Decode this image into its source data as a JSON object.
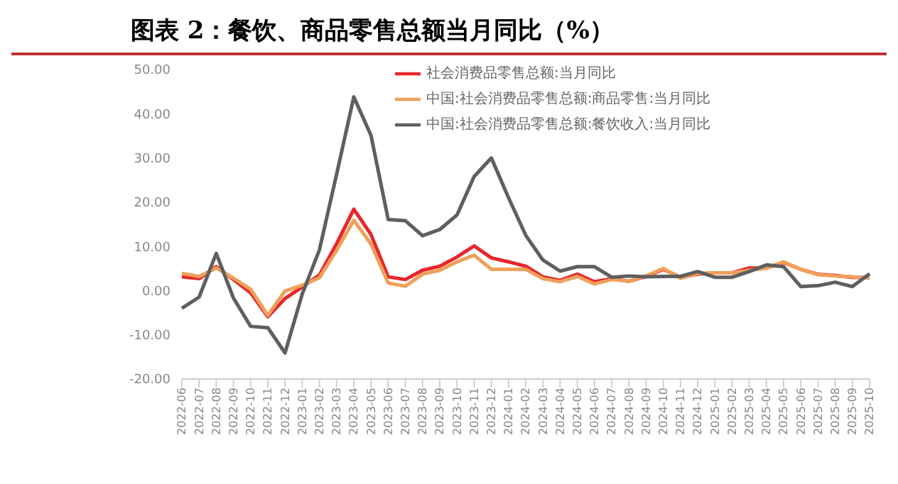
{
  "chart_data": {
    "type": "line",
    "title": "图表 2：餐饮、商品零售总额当月同比（%）",
    "categories": [
      "2022-06",
      "2022-07",
      "2022-08",
      "2022-09",
      "2022-10",
      "2022-11",
      "2022-12",
      "2023-01",
      "2023-02",
      "2023-03",
      "2023-04",
      "2023-05",
      "2023-06",
      "2023-07",
      "2023-08",
      "2023-09",
      "2023-10",
      "2023-11",
      "2023-12",
      "2024-01",
      "2024-02",
      "2024-03",
      "2024-04",
      "2024-05",
      "2024-06",
      "2024-07",
      "2024-08",
      "2024-09",
      "2024-10",
      "2024-11",
      "2024-12",
      "2025-01",
      "2025-02",
      "2025-03",
      "2025-04",
      "2025-05",
      "2025-06",
      "2025-07",
      "2025-08",
      "2025-09",
      "2025-10"
    ],
    "series": [
      {
        "name": "社会消费品零售总额:当月同比",
        "color": "#e8262a",
        "values": [
          3.1,
          2.7,
          5.4,
          2.5,
          -0.5,
          -5.9,
          -1.8,
          0.8,
          3.5,
          10.6,
          18.4,
          12.7,
          3.1,
          2.5,
          4.6,
          5.5,
          7.6,
          10.1,
          7.4,
          6.5,
          5.5,
          3.1,
          2.3,
          3.7,
          2.0,
          2.7,
          2.1,
          3.2,
          4.8,
          3.0,
          3.7,
          4.0,
          4.0,
          5.1,
          5.1,
          6.4,
          4.8,
          3.7,
          3.4,
          3.0,
          2.9
        ]
      },
      {
        "name": "中国:社会消费品零售总额:商品零售:当月同比",
        "color": "#f0a05a",
        "values": [
          3.9,
          3.2,
          5.1,
          2.8,
          0.3,
          -5.6,
          -0.1,
          1.2,
          2.9,
          9.1,
          15.9,
          10.5,
          1.7,
          1.0,
          3.7,
          4.6,
          6.5,
          8.0,
          4.8,
          4.8,
          4.8,
          2.7,
          2.0,
          3.2,
          1.5,
          2.5,
          2.1,
          3.3,
          5.0,
          2.8,
          3.9,
          4.0,
          4.0,
          4.6,
          5.1,
          6.5,
          4.8,
          3.6,
          3.3,
          3.1,
          2.8
        ]
      },
      {
        "name": "中国:社会消费品零售总额:餐饮收入:当月同比",
        "color": "#5f5f5f",
        "values": [
          -4.0,
          -1.5,
          8.4,
          -1.7,
          -8.1,
          -8.4,
          -14.1,
          -0.8,
          9.2,
          26.3,
          43.8,
          35.1,
          16.1,
          15.8,
          12.4,
          13.8,
          17.1,
          25.8,
          30.0,
          21.0,
          12.5,
          6.9,
          4.4,
          5.4,
          5.4,
          3.0,
          3.3,
          3.1,
          3.2,
          3.2,
          4.3,
          3.0,
          3.0,
          4.3,
          5.8,
          5.4,
          0.9,
          1.1,
          1.9,
          0.9,
          3.8
        ]
      }
    ],
    "ylim": [
      -20,
      50
    ],
    "yticks": [
      {
        "value": -20,
        "label": "-20.00"
      },
      {
        "value": -10,
        "label": "-10.00"
      },
      {
        "value": 0,
        "label": "0.00"
      },
      {
        "value": 10,
        "label": "10.00"
      },
      {
        "value": 20,
        "label": "20.00"
      },
      {
        "value": 30,
        "label": "30.00"
      },
      {
        "value": 40,
        "label": "40.00"
      },
      {
        "value": 50,
        "label": "50.00"
      }
    ],
    "grid": false,
    "legend": "top",
    "marker": "none",
    "line_style": "solid"
  }
}
